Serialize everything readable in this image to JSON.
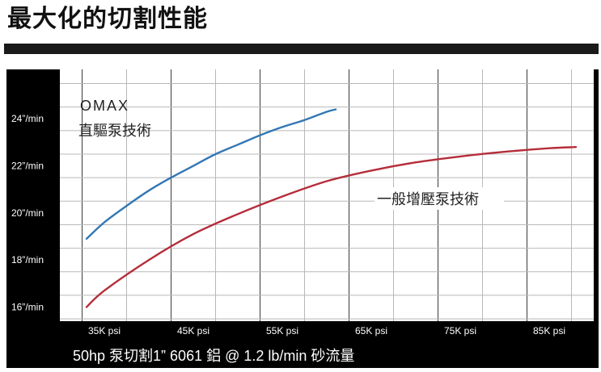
{
  "page": {
    "title": "最大化的切割性能"
  },
  "chart_data": {
    "type": "line",
    "title": "",
    "footer_caption": "50hp 泵切割1”  6061 鋁 @ 1.2 lb/min 砂流量",
    "x_tick_labels": [
      "35K psi",
      "45K psi",
      "55K psi",
      "65K psi",
      "75K psi",
      "85K psi"
    ],
    "y_tick_labels": [
      "24”/min",
      "22”/min",
      "20”/min",
      "18”/min",
      "16”/min"
    ],
    "y_tick_values": [
      24,
      22,
      20,
      18,
      16
    ],
    "xlim": [
      30,
      90
    ],
    "ylim": [
      15.4,
      26.1
    ],
    "grid": true,
    "series": [
      {
        "name": "OMAX\n直驅泵技術",
        "label_lines": [
          "OMAX",
          "直驅泵技術"
        ],
        "color": "#3277b4",
        "x": [
          33,
          35,
          37.5,
          40,
          42.5,
          45,
          47.5,
          50,
          52.5,
          55,
          57.5,
          60,
          61
        ],
        "y": [
          18.9,
          19.6,
          20.3,
          20.95,
          21.5,
          22.0,
          22.5,
          22.9,
          23.3,
          23.65,
          23.95,
          24.3,
          24.4
        ]
      },
      {
        "name": "一般增壓泵技術",
        "label_lines": [
          "一般增壓泵技術"
        ],
        "color": "#b52d3a",
        "x": [
          33,
          35,
          40,
          45,
          50,
          55,
          60,
          65,
          70,
          75,
          80,
          85,
          88
        ],
        "y": [
          16.0,
          16.7,
          18.0,
          19.1,
          19.95,
          20.7,
          21.35,
          21.8,
          22.15,
          22.4,
          22.6,
          22.75,
          22.8
        ]
      }
    ]
  }
}
